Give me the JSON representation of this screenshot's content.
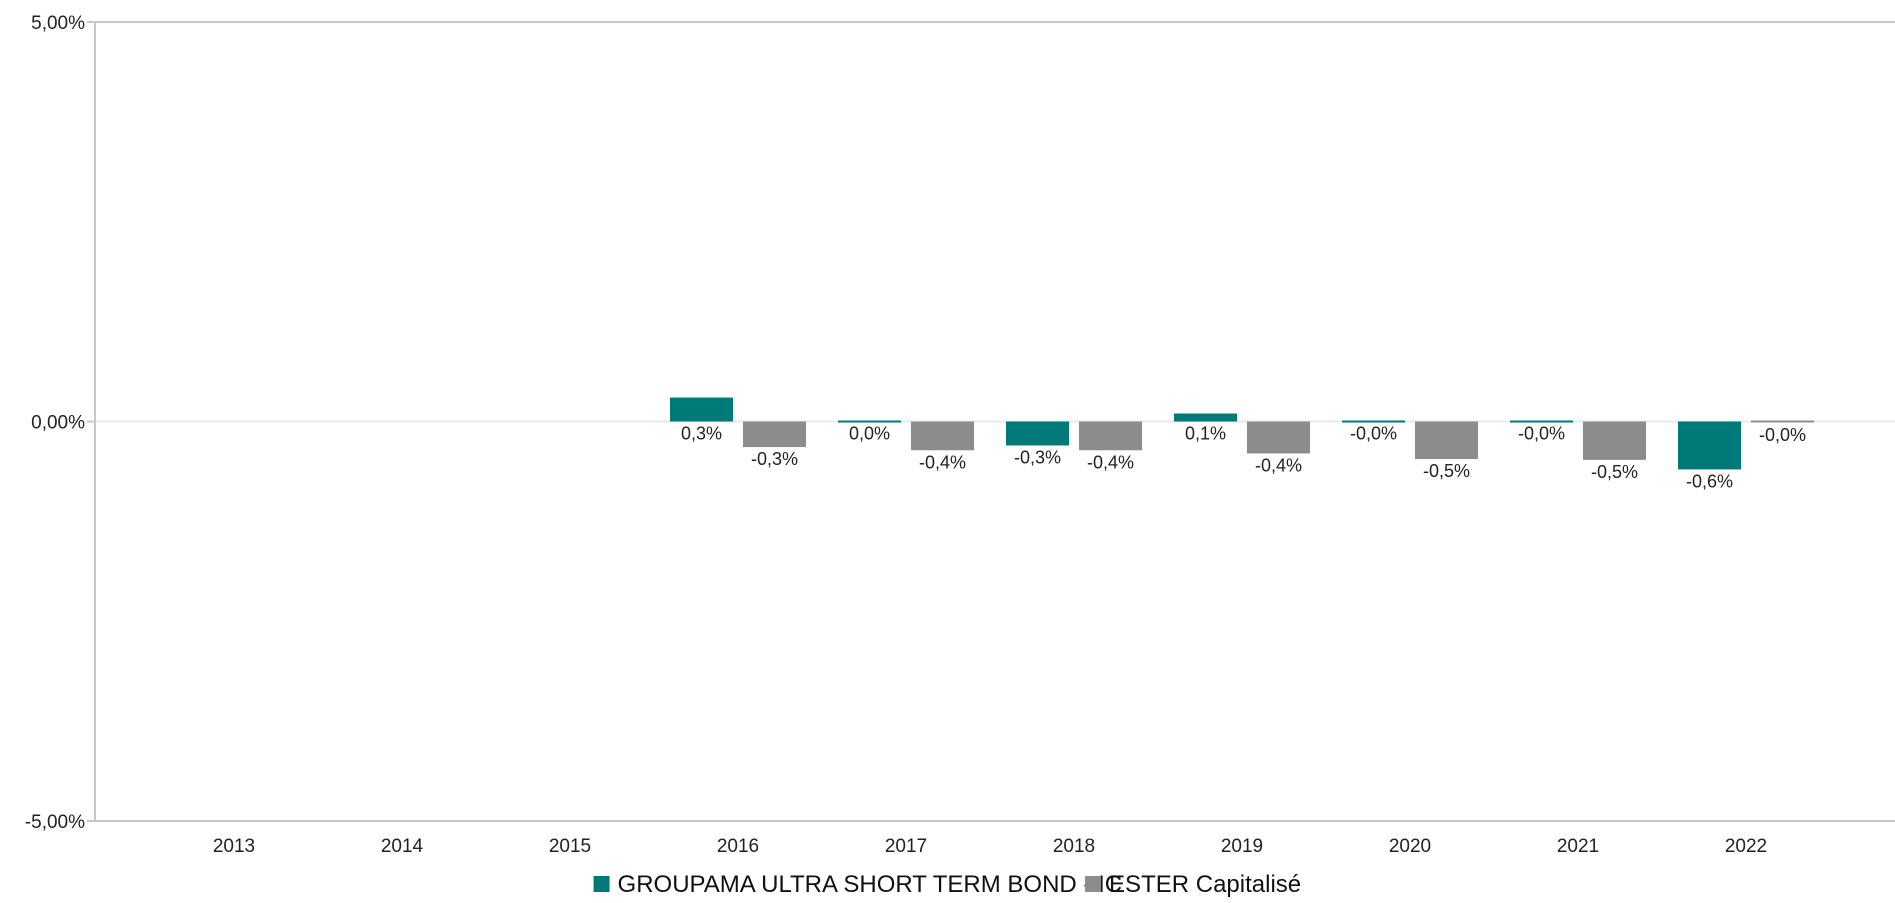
{
  "chart_data": {
    "type": "bar",
    "categories": [
      "2013",
      "2014",
      "2015",
      "2016",
      "2017",
      "2018",
      "2019",
      "2020",
      "2021",
      "2022"
    ],
    "series": [
      {
        "name": "GROUPAMA ULTRA SHORT TERM BOND - IC",
        "color": "#007a78",
        "values": [
          null,
          null,
          null,
          0.3,
          0.0,
          -0.3,
          0.1,
          -0.0,
          -0.0,
          -0.6
        ],
        "labels": [
          "",
          "",
          "",
          "0,3%",
          "0,0%",
          "-0,3%",
          "0,1%",
          "-0,0%",
          "-0,0%",
          "-0,6%"
        ]
      },
      {
        "name": "ESTER Capitalisé",
        "color": "#8c8c8c",
        "values": [
          null,
          null,
          null,
          -0.32,
          -0.36,
          -0.36,
          -0.4,
          -0.47,
          -0.48,
          -0.02
        ],
        "labels": [
          "",
          "",
          "",
          "-0,3%",
          "-0,4%",
          "-0,4%",
          "-0,4%",
          "-0,5%",
          "-0,5%",
          "-0,0%"
        ]
      }
    ],
    "ylim": [
      -5,
      5
    ],
    "yticks": [
      5,
      0,
      -5
    ],
    "ytick_labels": [
      "5,00%",
      "0,00%",
      "-5,00%"
    ],
    "grid": "horizontal at zero only",
    "legend": "bottom-center",
    "title": "",
    "xlabel": "",
    "ylabel": ""
  }
}
